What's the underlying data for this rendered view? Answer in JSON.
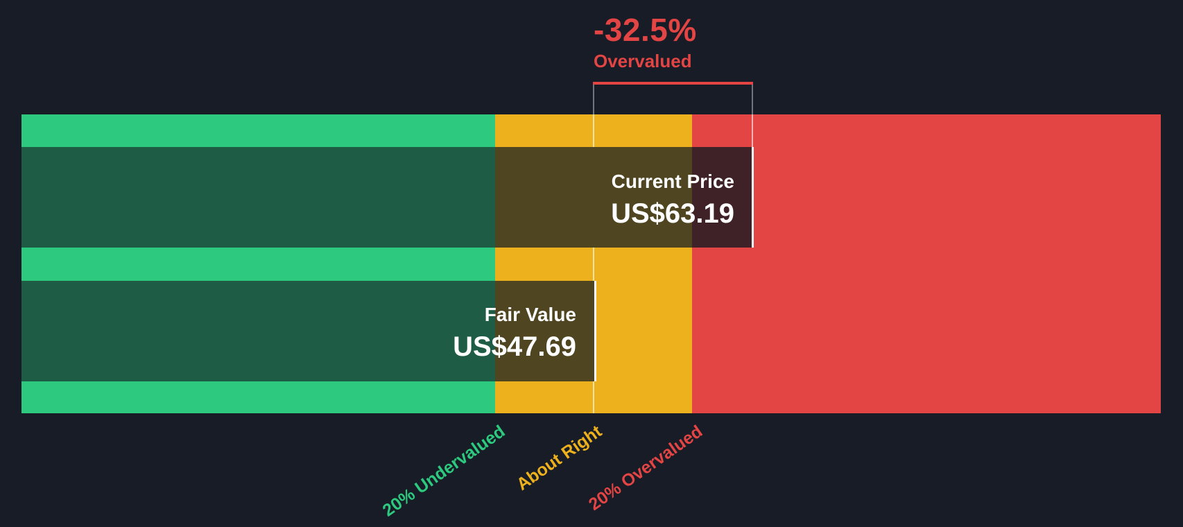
{
  "colors": {
    "background": "#171C26",
    "green": "#2CC97E",
    "green_dark": "#1F5C46",
    "yellow": "#ECB11C",
    "yellow_dark": "#4F4520",
    "red": "#E34444",
    "red_dark": "#3F2228",
    "white_edge": "#FFFFFF",
    "bracket_gray": "#71767C"
  },
  "chart_data": {
    "type": "bar",
    "subtype": "valuation-zones-gauge",
    "orientation": "horizontal",
    "grid": false,
    "annotation": {
      "percent": "-32.5%",
      "status": "Overvalued",
      "color": "#E34444"
    },
    "series": [
      {
        "name": "Current Price",
        "value": 63.19,
        "value_text": "US$63.19"
      },
      {
        "name": "Fair Value",
        "value": 47.69,
        "value_text": "US$47.69"
      }
    ],
    "zones": [
      {
        "label": "20% Undervalued",
        "color": "#2CC97E"
      },
      {
        "label": "About Right",
        "color": "#ECB11C"
      },
      {
        "label": "20% Overvalued",
        "color": "#E34444"
      }
    ],
    "legend_position": "bottom-rotated"
  }
}
